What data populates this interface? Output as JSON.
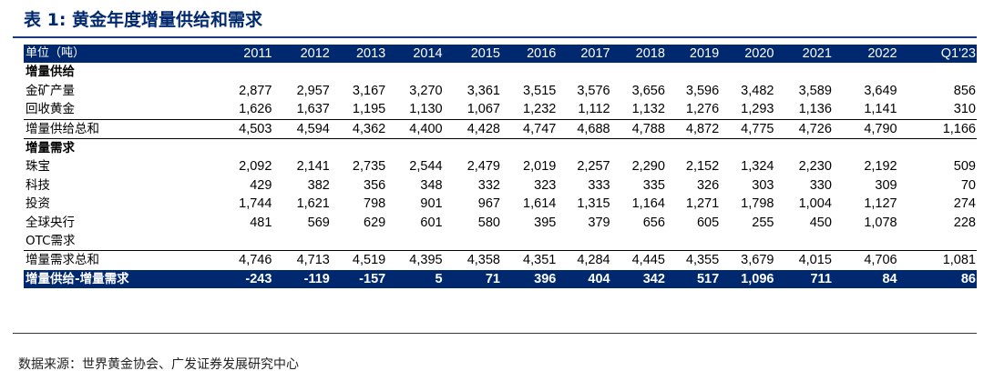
{
  "title": "表 1: 黄金年度增量供给和需求",
  "table": {
    "unit_label": "单位（吨）",
    "years": [
      "2011",
      "2012",
      "2013",
      "2014",
      "2015",
      "2016",
      "2017",
      "2018",
      "2019",
      "2020",
      "2021",
      "2022",
      "Q1'23"
    ],
    "supply_section": "增量供给",
    "supply_rows": [
      {
        "label": "金矿产量",
        "values": [
          "2,877",
          "2,957",
          "3,167",
          "3,270",
          "3,361",
          "3,515",
          "3,576",
          "3,656",
          "3,596",
          "3,482",
          "3,589",
          "3,649",
          "856"
        ]
      },
      {
        "label": "回收黄金",
        "values": [
          "1,626",
          "1,637",
          "1,195",
          "1,130",
          "1,067",
          "1,232",
          "1,112",
          "1,132",
          "1,276",
          "1,293",
          "1,136",
          "1,141",
          "310"
        ]
      }
    ],
    "supply_total": {
      "label": "增量供给总和",
      "values": [
        "4,503",
        "4,594",
        "4,362",
        "4,400",
        "4,428",
        "4,747",
        "4,688",
        "4,788",
        "4,872",
        "4,775",
        "4,726",
        "4,790",
        "1,166"
      ]
    },
    "demand_section": "增量需求",
    "demand_rows": [
      {
        "label": "珠宝",
        "values": [
          "2,092",
          "2,141",
          "2,735",
          "2,544",
          "2,479",
          "2,019",
          "2,257",
          "2,290",
          "2,152",
          "1,324",
          "2,230",
          "2,192",
          "509"
        ]
      },
      {
        "label": "科技",
        "values": [
          "429",
          "382",
          "356",
          "348",
          "332",
          "323",
          "333",
          "335",
          "326",
          "303",
          "330",
          "309",
          "70"
        ]
      },
      {
        "label": "投资",
        "values": [
          "1,744",
          "1,621",
          "798",
          "901",
          "967",
          "1,614",
          "1,315",
          "1,164",
          "1,271",
          "1,798",
          "1,004",
          "1,127",
          "274"
        ]
      },
      {
        "label": "全球央行",
        "values": [
          "481",
          "569",
          "629",
          "601",
          "580",
          "395",
          "379",
          "656",
          "605",
          "255",
          "450",
          "1,078",
          "228"
        ]
      },
      {
        "label": "OTC需求",
        "values": [
          "",
          "",
          "",
          "",
          "",
          "",
          "",
          "",
          "",
          "",
          "",
          "",
          ""
        ]
      }
    ],
    "demand_total": {
      "label": "增量需求总和",
      "values": [
        "4,746",
        "4,713",
        "4,519",
        "4,395",
        "4,358",
        "4,351",
        "4,284",
        "4,445",
        "4,355",
        "3,679",
        "4,015",
        "4,706",
        "1,081"
      ]
    },
    "net": {
      "label": "增量供给-增量需求",
      "values": [
        "-243",
        "-119",
        "-157",
        "5",
        "71",
        "396",
        "404",
        "342",
        "517",
        "1,096",
        "711",
        "84",
        "86"
      ]
    }
  },
  "source": "数据来源：世界黄金协会、广发证券发展研究中心",
  "colors": {
    "header_bg": "#00286e",
    "title": "#00286e"
  }
}
